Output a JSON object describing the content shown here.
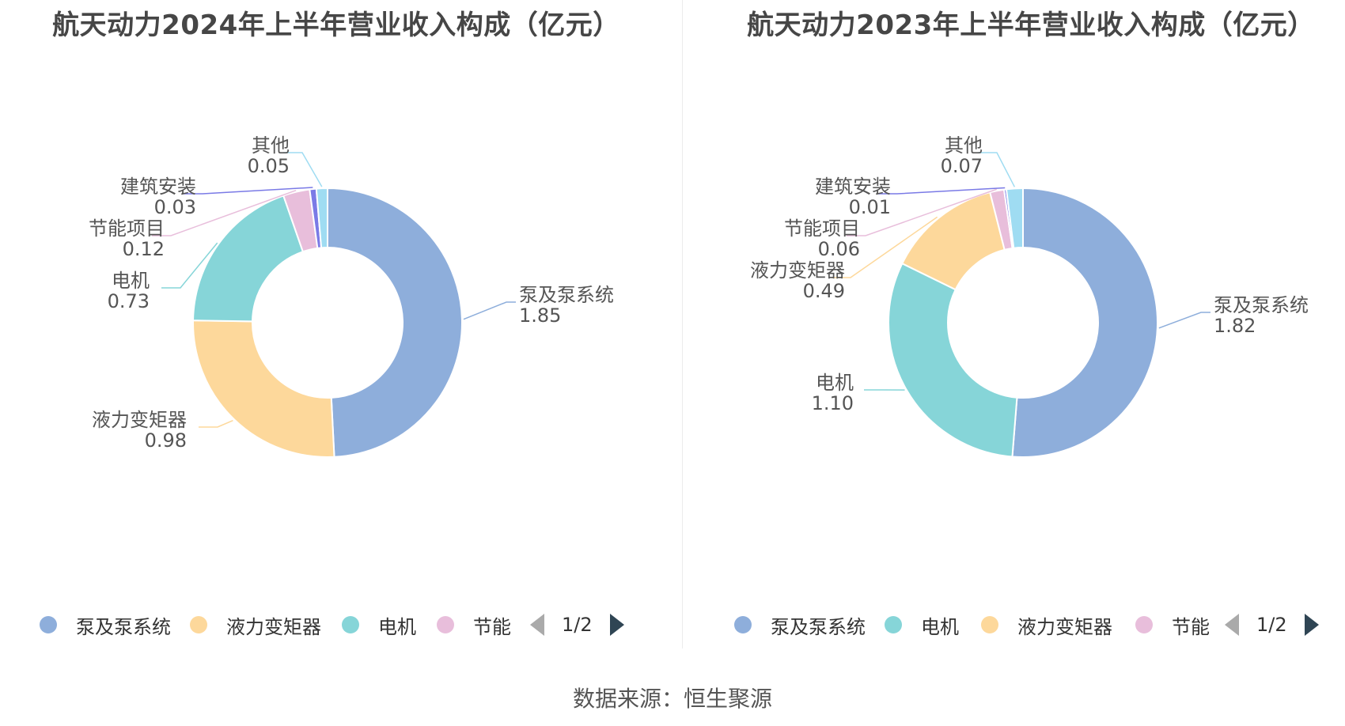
{
  "source": "数据来源：恒生聚源",
  "chart_data": [
    {
      "type": "pie",
      "variant": "donut",
      "title": "航天动力2024年上半年营业收入构成（亿元）",
      "categories": [
        "泵及泵系统",
        "液力变矩器",
        "电机",
        "节能项目",
        "建筑安装",
        "其他"
      ],
      "values": [
        1.85,
        0.98,
        0.73,
        0.12,
        0.03,
        0.05
      ],
      "value_labels": [
        "1.85",
        "0.98",
        "0.73",
        "0.12",
        "0.03",
        "0.05"
      ],
      "colors": [
        "#8eaedb",
        "#fdd89b",
        "#86d5d8",
        "#e8bedb",
        "#7a7ae6",
        "#9fdcf2"
      ],
      "legend": {
        "position": "bottom",
        "visible_items": [
          "泵及泵系统",
          "液力变矩器",
          "电机",
          "节能"
        ],
        "page": "1/2"
      }
    },
    {
      "type": "pie",
      "variant": "donut",
      "title": "航天动力2023年上半年营业收入构成（亿元）",
      "categories": [
        "泵及泵系统",
        "电机",
        "液力变矩器",
        "节能项目",
        "建筑安装",
        "其他"
      ],
      "values": [
        1.82,
        1.1,
        0.49,
        0.06,
        0.01,
        0.07
      ],
      "value_labels": [
        "1.82",
        "1.10",
        "0.49",
        "0.06",
        "0.01",
        "0.07"
      ],
      "colors": [
        "#8eaedb",
        "#86d5d8",
        "#fdd89b",
        "#e8bedb",
        "#7a7ae6",
        "#9fdcf2"
      ],
      "legend": {
        "position": "bottom",
        "visible_items": [
          "泵及泵系统",
          "电机",
          "液力变矩器",
          "节能"
        ],
        "page": "1/2"
      }
    }
  ]
}
